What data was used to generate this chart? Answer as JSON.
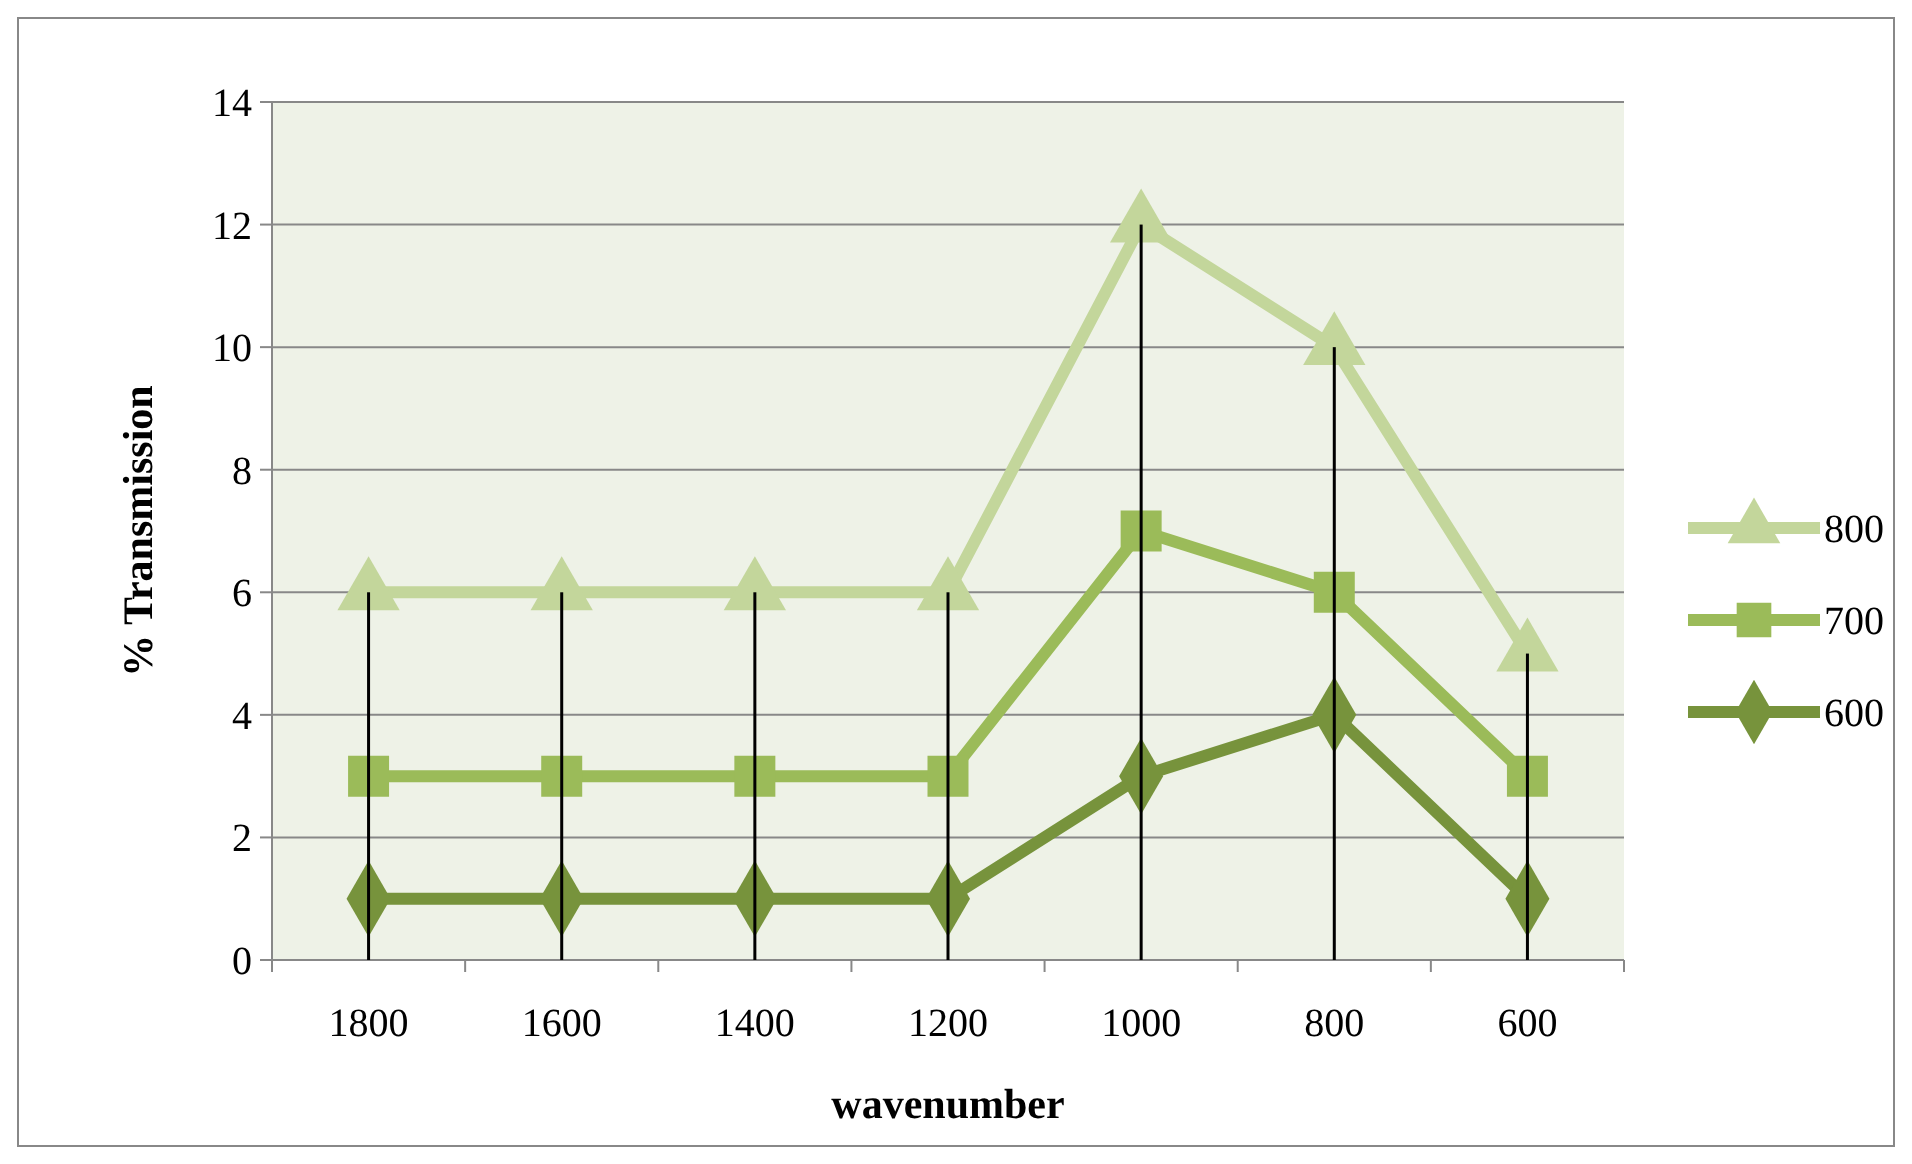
{
  "chart_data": {
    "type": "line",
    "xlabel": "wavenumber",
    "ylabel": "% Transmission",
    "categories": [
      "1800",
      "1600",
      "1400",
      "1200",
      "1000",
      "800",
      "600"
    ],
    "series": [
      {
        "type": "bar",
        "color": "#000000",
        "values": [
          6,
          6,
          6,
          6,
          12,
          10,
          5
        ]
      },
      {
        "name": "800",
        "color": "#c3d69b",
        "marker": "triangle",
        "values": [
          6,
          6,
          6,
          6,
          12,
          10,
          5
        ]
      },
      {
        "name": "700",
        "color": "#9bbb59",
        "marker": "square",
        "values": [
          3,
          3,
          3,
          3,
          7,
          6,
          3
        ]
      },
      {
        "name": "600",
        "color": "#77933c",
        "marker": "diamond",
        "values": [
          1,
          1,
          1,
          1,
          3,
          4,
          1
        ]
      }
    ],
    "ylim": [
      0,
      14
    ],
    "yticks": [
      0,
      2,
      4,
      6,
      8,
      10,
      12,
      14
    ],
    "grid": "y",
    "legend": "right",
    "line_style": "solid"
  }
}
